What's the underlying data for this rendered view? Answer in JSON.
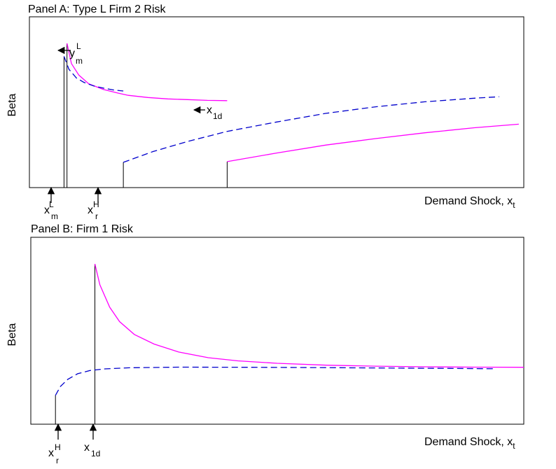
{
  "chart_data": [
    {
      "type": "line",
      "title": "Panel A: Type L Firm 2 Risk",
      "xlabel": "Demand Shock, x",
      "xlabel_sub": "t",
      "ylabel": "Beta",
      "grid": false,
      "colors": {
        "solid": "#ff00ff",
        "dashed": "#0000cc",
        "axis": "#000000"
      },
      "xlim": [
        0,
        100
      ],
      "ylim": [
        0,
        100
      ],
      "series": [
        {
          "style": "solid",
          "color": "#ff00ff",
          "x": [
            7.6,
            8.5,
            10,
            12,
            15,
            18,
            20,
            24,
            28,
            32,
            36,
            40
          ],
          "y": [
            100,
            86,
            78,
            72,
            68,
            65.5,
            64,
            62.5,
            61.5,
            61,
            60.5,
            60.3
          ]
        },
        {
          "style": "solid",
          "color": "#ff00ff",
          "x": [
            40,
            50,
            60,
            70,
            80,
            90,
            99
          ],
          "y": [
            18,
            24,
            29.5,
            34,
            38,
            41.5,
            44
          ]
        },
        {
          "style": "dashed",
          "color": "#0000cc",
          "x": [
            7.0,
            8,
            9.5,
            11,
            13,
            15,
            17,
            19
          ],
          "y": [
            91,
            82,
            76,
            73,
            70.5,
            69,
            67.7,
            67
          ]
        },
        {
          "style": "dashed",
          "color": "#0000cc",
          "x": [
            19,
            25,
            32,
            40,
            50,
            60,
            70,
            80,
            90,
            95
          ],
          "y": [
            17.5,
            25,
            32,
            39,
            45.5,
            51.5,
            56,
            59.5,
            62,
            63
          ]
        }
      ],
      "annotations": [
        {
          "id": "xmL",
          "base": "x",
          "sup": "L",
          "sub": "m",
          "x": 7
        },
        {
          "id": "xrH",
          "base": "x",
          "sup": "H",
          "sub": "r",
          "x": 19
        },
        {
          "id": "ymL",
          "base": "y",
          "sup": "L",
          "sub": "m",
          "x": 7.6,
          "y": 100
        },
        {
          "id": "x1d",
          "base": "x",
          "sub": "1d",
          "x": 40,
          "y": 60.3
        }
      ]
    },
    {
      "type": "line",
      "title": "Panel B: Firm 1 Risk",
      "xlabel": "Demand Shock, x",
      "xlabel_sub": "t",
      "ylabel": "Beta",
      "grid": false,
      "colors": {
        "solid": "#ff00ff",
        "dashed": "#0000cc",
        "axis": "#000000"
      },
      "xlim": [
        0,
        100
      ],
      "ylim": [
        0,
        100
      ],
      "series": [
        {
          "style": "solid",
          "color": "#ff00ff",
          "x": [
            13,
            14,
            16,
            18,
            21,
            25,
            30,
            36,
            42,
            50,
            60,
            70,
            80,
            90,
            100
          ],
          "y": [
            100,
            87,
            73,
            64,
            56,
            50,
            45,
            41.5,
            39.5,
            38,
            36.8,
            36.2,
            35.8,
            35.6,
            35.5
          ]
        },
        {
          "style": "dashed",
          "color": "#0000cc",
          "x": [
            5,
            6,
            7.5,
            9.5,
            12,
            15,
            20,
            30,
            45,
            60,
            75,
            85,
            94
          ],
          "y": [
            18,
            23.5,
            28,
            31.5,
            33.5,
            34.5,
            35.2,
            35.6,
            35.5,
            35.3,
            35,
            34.8,
            34.6
          ]
        }
      ],
      "annotations": [
        {
          "id": "xrH",
          "base": "x",
          "sup": "H",
          "sub": "r",
          "x": 5
        },
        {
          "id": "x1d",
          "base": "x",
          "sub": "1d",
          "x": 13
        }
      ]
    }
  ]
}
